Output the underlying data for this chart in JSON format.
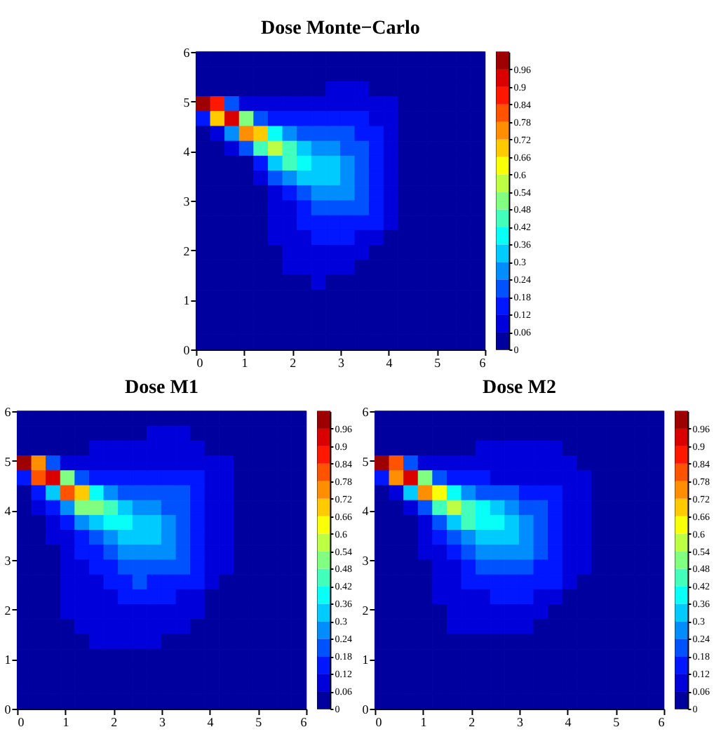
{
  "chart_data": [
    {
      "type": "heatmap",
      "title": "Dose Monte−Carlo",
      "x": [
        0.15,
        0.45,
        0.75,
        1.05,
        1.35,
        1.65,
        1.95,
        2.25,
        2.55,
        2.85,
        3.15,
        3.45,
        3.75,
        4.05,
        4.35,
        4.65,
        4.95,
        5.25,
        5.55,
        5.85
      ],
      "y": [
        5.85,
        5.55,
        5.25,
        4.95,
        4.65,
        4.35,
        4.05,
        3.75,
        3.45,
        3.15,
        2.85,
        2.55,
        2.25,
        1.95,
        1.65,
        1.35,
        1.05,
        0.75,
        0.45,
        0.15
      ],
      "xlim": [
        0,
        6
      ],
      "ylim": [
        0,
        6
      ],
      "xticks": [
        0,
        1,
        2,
        3,
        4,
        5,
        6
      ],
      "yticks": [
        0,
        1,
        2,
        3,
        4,
        5,
        6
      ],
      "clim": [
        0,
        1.02
      ],
      "cticks": [
        0,
        0.06,
        0.12,
        0.18,
        0.24,
        0.3,
        0.36,
        0.42,
        0.48,
        0.54,
        0.6,
        0.66,
        0.72,
        0.78,
        0.84,
        0.9,
        0.96
      ],
      "cells": [
        [
          0.03,
          0.03,
          0.03,
          0.03,
          0.03,
          0.03,
          0.03,
          0.03,
          0.03,
          0.03,
          0.03,
          0.03,
          0.03,
          0.03,
          0.03,
          0.03,
          0.03,
          0.03,
          0.03,
          0.03
        ],
        [
          0.03,
          0.03,
          0.03,
          0.03,
          0.03,
          0.03,
          0.03,
          0.03,
          0.03,
          0.03,
          0.03,
          0.03,
          0.03,
          0.03,
          0.03,
          0.03,
          0.03,
          0.03,
          0.03,
          0.03
        ],
        [
          0.03,
          0.03,
          0.03,
          0.03,
          0.03,
          0.03,
          0.03,
          0.03,
          0.03,
          0.09,
          0.09,
          0.09,
          0.03,
          0.03,
          0.03,
          0.03,
          0.03,
          0.03,
          0.03,
          0.03
        ],
        [
          0.99,
          0.87,
          0.21,
          0.09,
          0.09,
          0.09,
          0.09,
          0.09,
          0.09,
          0.09,
          0.09,
          0.09,
          0.09,
          0.09,
          0.03,
          0.03,
          0.03,
          0.03,
          0.03,
          0.03
        ],
        [
          0.15,
          0.69,
          0.93,
          0.51,
          0.21,
          0.15,
          0.15,
          0.15,
          0.15,
          0.15,
          0.15,
          0.15,
          0.09,
          0.09,
          0.03,
          0.03,
          0.03,
          0.03,
          0.03,
          0.03
        ],
        [
          0.03,
          0.09,
          0.27,
          0.75,
          0.69,
          0.39,
          0.27,
          0.21,
          0.21,
          0.21,
          0.21,
          0.15,
          0.15,
          0.09,
          0.03,
          0.03,
          0.03,
          0.03,
          0.03,
          0.03
        ],
        [
          0.03,
          0.03,
          0.09,
          0.21,
          0.45,
          0.57,
          0.45,
          0.33,
          0.27,
          0.27,
          0.21,
          0.21,
          0.15,
          0.09,
          0.03,
          0.03,
          0.03,
          0.03,
          0.03,
          0.03
        ],
        [
          0.03,
          0.03,
          0.03,
          0.03,
          0.15,
          0.33,
          0.45,
          0.39,
          0.33,
          0.33,
          0.27,
          0.21,
          0.15,
          0.09,
          0.03,
          0.03,
          0.03,
          0.03,
          0.03,
          0.03
        ],
        [
          0.03,
          0.03,
          0.03,
          0.03,
          0.09,
          0.21,
          0.27,
          0.33,
          0.33,
          0.33,
          0.27,
          0.21,
          0.15,
          0.09,
          0.03,
          0.03,
          0.03,
          0.03,
          0.03,
          0.03
        ],
        [
          0.03,
          0.03,
          0.03,
          0.03,
          0.03,
          0.09,
          0.15,
          0.21,
          0.27,
          0.27,
          0.27,
          0.21,
          0.15,
          0.09,
          0.03,
          0.03,
          0.03,
          0.03,
          0.03,
          0.03
        ],
        [
          0.03,
          0.03,
          0.03,
          0.03,
          0.03,
          0.09,
          0.09,
          0.15,
          0.21,
          0.21,
          0.21,
          0.21,
          0.15,
          0.09,
          0.03,
          0.03,
          0.03,
          0.03,
          0.03,
          0.03
        ],
        [
          0.03,
          0.03,
          0.03,
          0.03,
          0.03,
          0.09,
          0.09,
          0.15,
          0.15,
          0.15,
          0.15,
          0.15,
          0.15,
          0.09,
          0.03,
          0.03,
          0.03,
          0.03,
          0.03,
          0.03
        ],
        [
          0.03,
          0.03,
          0.03,
          0.03,
          0.03,
          0.09,
          0.09,
          0.09,
          0.15,
          0.15,
          0.15,
          0.09,
          0.09,
          0.03,
          0.03,
          0.03,
          0.03,
          0.03,
          0.03,
          0.03
        ],
        [
          0.03,
          0.03,
          0.03,
          0.03,
          0.03,
          0.03,
          0.09,
          0.09,
          0.09,
          0.09,
          0.09,
          0.09,
          0.03,
          0.03,
          0.03,
          0.03,
          0.03,
          0.03,
          0.03,
          0.03
        ],
        [
          0.03,
          0.03,
          0.03,
          0.03,
          0.03,
          0.03,
          0.09,
          0.09,
          0.09,
          0.09,
          0.09,
          0.03,
          0.03,
          0.03,
          0.03,
          0.03,
          0.03,
          0.03,
          0.03,
          0.03
        ],
        [
          0.03,
          0.03,
          0.03,
          0.03,
          0.03,
          0.03,
          0.03,
          0.03,
          0.09,
          0.03,
          0.03,
          0.03,
          0.03,
          0.03,
          0.03,
          0.03,
          0.03,
          0.03,
          0.03,
          0.03
        ],
        [
          0.03,
          0.03,
          0.03,
          0.03,
          0.03,
          0.03,
          0.03,
          0.03,
          0.03,
          0.03,
          0.03,
          0.03,
          0.03,
          0.03,
          0.03,
          0.03,
          0.03,
          0.03,
          0.03,
          0.03
        ],
        [
          0.03,
          0.03,
          0.03,
          0.03,
          0.03,
          0.03,
          0.03,
          0.03,
          0.03,
          0.03,
          0.03,
          0.03,
          0.03,
          0.03,
          0.03,
          0.03,
          0.03,
          0.03,
          0.03,
          0.03
        ],
        [
          0.03,
          0.03,
          0.03,
          0.03,
          0.03,
          0.03,
          0.03,
          0.03,
          0.03,
          0.03,
          0.03,
          0.03,
          0.03,
          0.03,
          0.03,
          0.03,
          0.03,
          0.03,
          0.03,
          0.03
        ],
        [
          0.03,
          0.03,
          0.03,
          0.03,
          0.03,
          0.03,
          0.03,
          0.03,
          0.03,
          0.03,
          0.03,
          0.03,
          0.03,
          0.03,
          0.03,
          0.03,
          0.03,
          0.03,
          0.03,
          0.03
        ]
      ]
    },
    {
      "type": "heatmap",
      "title": "Dose M1",
      "x": [
        0.15,
        0.45,
        0.75,
        1.05,
        1.35,
        1.65,
        1.95,
        2.25,
        2.55,
        2.85,
        3.15,
        3.45,
        3.75,
        4.05,
        4.35,
        4.65,
        4.95,
        5.25,
        5.55,
        5.85
      ],
      "y": [
        5.85,
        5.55,
        5.25,
        4.95,
        4.65,
        4.35,
        4.05,
        3.75,
        3.45,
        3.15,
        2.85,
        2.55,
        2.25,
        1.95,
        1.65,
        1.35,
        1.05,
        0.75,
        0.45,
        0.15
      ],
      "xlim": [
        0,
        6
      ],
      "ylim": [
        0,
        6
      ],
      "xticks": [
        0,
        1,
        2,
        3,
        4,
        5,
        6
      ],
      "yticks": [
        0,
        1,
        2,
        3,
        4,
        5,
        6
      ],
      "clim": [
        0,
        1.02
      ],
      "cticks": [
        0,
        0.06,
        0.12,
        0.18,
        0.24,
        0.3,
        0.36,
        0.42,
        0.48,
        0.54,
        0.6,
        0.66,
        0.72,
        0.78,
        0.84,
        0.9,
        0.96
      ],
      "cells": [
        [
          0.03,
          0.03,
          0.03,
          0.03,
          0.03,
          0.03,
          0.03,
          0.03,
          0.03,
          0.03,
          0.03,
          0.03,
          0.03,
          0.03,
          0.03,
          0.03,
          0.03,
          0.03,
          0.03,
          0.03
        ],
        [
          0.03,
          0.03,
          0.03,
          0.03,
          0.03,
          0.03,
          0.03,
          0.03,
          0.03,
          0.09,
          0.09,
          0.09,
          0.03,
          0.03,
          0.03,
          0.03,
          0.03,
          0.03,
          0.03,
          0.03
        ],
        [
          0.03,
          0.03,
          0.03,
          0.03,
          0.03,
          0.09,
          0.09,
          0.09,
          0.09,
          0.09,
          0.09,
          0.09,
          0.09,
          0.03,
          0.03,
          0.03,
          0.03,
          0.03,
          0.03,
          0.03
        ],
        [
          0.99,
          0.75,
          0.21,
          0.09,
          0.09,
          0.09,
          0.09,
          0.09,
          0.09,
          0.09,
          0.09,
          0.09,
          0.09,
          0.09,
          0.09,
          0.03,
          0.03,
          0.03,
          0.03,
          0.03
        ],
        [
          0.15,
          0.81,
          0.93,
          0.51,
          0.21,
          0.15,
          0.15,
          0.15,
          0.15,
          0.15,
          0.15,
          0.15,
          0.15,
          0.09,
          0.09,
          0.03,
          0.03,
          0.03,
          0.03,
          0.03
        ],
        [
          0.03,
          0.15,
          0.33,
          0.81,
          0.69,
          0.39,
          0.27,
          0.21,
          0.21,
          0.21,
          0.21,
          0.21,
          0.15,
          0.09,
          0.09,
          0.03,
          0.03,
          0.03,
          0.03,
          0.03
        ],
        [
          0.03,
          0.09,
          0.15,
          0.27,
          0.51,
          0.51,
          0.45,
          0.33,
          0.27,
          0.27,
          0.21,
          0.21,
          0.15,
          0.09,
          0.09,
          0.03,
          0.03,
          0.03,
          0.03,
          0.03
        ],
        [
          0.03,
          0.03,
          0.09,
          0.15,
          0.27,
          0.33,
          0.39,
          0.39,
          0.33,
          0.33,
          0.27,
          0.21,
          0.15,
          0.09,
          0.09,
          0.03,
          0.03,
          0.03,
          0.03,
          0.03
        ],
        [
          0.03,
          0.03,
          0.09,
          0.09,
          0.15,
          0.21,
          0.27,
          0.33,
          0.33,
          0.33,
          0.27,
          0.21,
          0.15,
          0.09,
          0.09,
          0.03,
          0.03,
          0.03,
          0.03,
          0.03
        ],
        [
          0.03,
          0.03,
          0.03,
          0.09,
          0.15,
          0.15,
          0.21,
          0.27,
          0.27,
          0.27,
          0.27,
          0.21,
          0.15,
          0.09,
          0.09,
          0.03,
          0.03,
          0.03,
          0.03,
          0.03
        ],
        [
          0.03,
          0.03,
          0.03,
          0.09,
          0.09,
          0.15,
          0.15,
          0.21,
          0.21,
          0.21,
          0.21,
          0.21,
          0.15,
          0.09,
          0.09,
          0.03,
          0.03,
          0.03,
          0.03,
          0.03
        ],
        [
          0.03,
          0.03,
          0.03,
          0.09,
          0.09,
          0.09,
          0.15,
          0.15,
          0.21,
          0.15,
          0.15,
          0.15,
          0.15,
          0.09,
          0.03,
          0.03,
          0.03,
          0.03,
          0.03,
          0.03
        ],
        [
          0.03,
          0.03,
          0.03,
          0.09,
          0.09,
          0.09,
          0.09,
          0.15,
          0.15,
          0.15,
          0.15,
          0.09,
          0.09,
          0.03,
          0.03,
          0.03,
          0.03,
          0.03,
          0.03,
          0.03
        ],
        [
          0.03,
          0.03,
          0.03,
          0.09,
          0.09,
          0.09,
          0.09,
          0.09,
          0.09,
          0.09,
          0.09,
          0.09,
          0.09,
          0.03,
          0.03,
          0.03,
          0.03,
          0.03,
          0.03,
          0.03
        ],
        [
          0.03,
          0.03,
          0.03,
          0.03,
          0.09,
          0.09,
          0.09,
          0.09,
          0.09,
          0.09,
          0.09,
          0.09,
          0.03,
          0.03,
          0.03,
          0.03,
          0.03,
          0.03,
          0.03,
          0.03
        ],
        [
          0.03,
          0.03,
          0.03,
          0.03,
          0.03,
          0.09,
          0.09,
          0.09,
          0.09,
          0.09,
          0.03,
          0.03,
          0.03,
          0.03,
          0.03,
          0.03,
          0.03,
          0.03,
          0.03,
          0.03
        ],
        [
          0.03,
          0.03,
          0.03,
          0.03,
          0.03,
          0.03,
          0.03,
          0.03,
          0.03,
          0.03,
          0.03,
          0.03,
          0.03,
          0.03,
          0.03,
          0.03,
          0.03,
          0.03,
          0.03,
          0.03
        ],
        [
          0.03,
          0.03,
          0.03,
          0.03,
          0.03,
          0.03,
          0.03,
          0.03,
          0.03,
          0.03,
          0.03,
          0.03,
          0.03,
          0.03,
          0.03,
          0.03,
          0.03,
          0.03,
          0.03,
          0.03
        ],
        [
          0.03,
          0.03,
          0.03,
          0.03,
          0.03,
          0.03,
          0.03,
          0.03,
          0.03,
          0.03,
          0.03,
          0.03,
          0.03,
          0.03,
          0.03,
          0.03,
          0.03,
          0.03,
          0.03,
          0.03
        ],
        [
          0.03,
          0.03,
          0.03,
          0.03,
          0.03,
          0.03,
          0.03,
          0.03,
          0.03,
          0.03,
          0.03,
          0.03,
          0.03,
          0.03,
          0.03,
          0.03,
          0.03,
          0.03,
          0.03,
          0.03
        ]
      ]
    },
    {
      "type": "heatmap",
      "title": "Dose M2",
      "x": [
        0.15,
        0.45,
        0.75,
        1.05,
        1.35,
        1.65,
        1.95,
        2.25,
        2.55,
        2.85,
        3.15,
        3.45,
        3.75,
        4.05,
        4.35,
        4.65,
        4.95,
        5.25,
        5.55,
        5.85
      ],
      "y": [
        5.85,
        5.55,
        5.25,
        4.95,
        4.65,
        4.35,
        4.05,
        3.75,
        3.45,
        3.15,
        2.85,
        2.55,
        2.25,
        1.95,
        1.65,
        1.35,
        1.05,
        0.75,
        0.45,
        0.15
      ],
      "xlim": [
        0,
        6
      ],
      "ylim": [
        0,
        6
      ],
      "xticks": [
        0,
        1,
        2,
        3,
        4,
        5,
        6
      ],
      "yticks": [
        0,
        1,
        2,
        3,
        4,
        5,
        6
      ],
      "clim": [
        0,
        1.02
      ],
      "cticks": [
        0,
        0.06,
        0.12,
        0.18,
        0.24,
        0.3,
        0.36,
        0.42,
        0.48,
        0.54,
        0.6,
        0.66,
        0.72,
        0.78,
        0.84,
        0.9,
        0.96
      ],
      "cells": [
        [
          0.03,
          0.03,
          0.03,
          0.03,
          0.03,
          0.03,
          0.03,
          0.03,
          0.03,
          0.03,
          0.03,
          0.03,
          0.03,
          0.03,
          0.03,
          0.03,
          0.03,
          0.03,
          0.03,
          0.03
        ],
        [
          0.03,
          0.03,
          0.03,
          0.03,
          0.03,
          0.03,
          0.03,
          0.03,
          0.03,
          0.03,
          0.03,
          0.03,
          0.03,
          0.03,
          0.03,
          0.03,
          0.03,
          0.03,
          0.03,
          0.03
        ],
        [
          0.03,
          0.03,
          0.03,
          0.03,
          0.03,
          0.03,
          0.03,
          0.09,
          0.09,
          0.09,
          0.09,
          0.09,
          0.09,
          0.03,
          0.03,
          0.03,
          0.03,
          0.03,
          0.03,
          0.03
        ],
        [
          0.99,
          0.81,
          0.21,
          0.09,
          0.09,
          0.09,
          0.09,
          0.09,
          0.09,
          0.09,
          0.09,
          0.09,
          0.09,
          0.09,
          0.03,
          0.03,
          0.03,
          0.03,
          0.03,
          0.03
        ],
        [
          0.15,
          0.75,
          0.93,
          0.51,
          0.21,
          0.15,
          0.15,
          0.15,
          0.09,
          0.09,
          0.09,
          0.09,
          0.09,
          0.09,
          0.09,
          0.03,
          0.03,
          0.03,
          0.03,
          0.03
        ],
        [
          0.03,
          0.09,
          0.33,
          0.75,
          0.63,
          0.39,
          0.27,
          0.21,
          0.21,
          0.21,
          0.15,
          0.15,
          0.15,
          0.09,
          0.09,
          0.03,
          0.03,
          0.03,
          0.03,
          0.03
        ],
        [
          0.03,
          0.03,
          0.09,
          0.21,
          0.45,
          0.57,
          0.45,
          0.39,
          0.33,
          0.27,
          0.21,
          0.21,
          0.15,
          0.09,
          0.09,
          0.03,
          0.03,
          0.03,
          0.03,
          0.03
        ],
        [
          0.03,
          0.03,
          0.03,
          0.09,
          0.21,
          0.33,
          0.45,
          0.39,
          0.39,
          0.33,
          0.27,
          0.21,
          0.15,
          0.09,
          0.09,
          0.03,
          0.03,
          0.03,
          0.03,
          0.03
        ],
        [
          0.03,
          0.03,
          0.03,
          0.09,
          0.15,
          0.21,
          0.27,
          0.33,
          0.33,
          0.33,
          0.27,
          0.21,
          0.15,
          0.09,
          0.09,
          0.03,
          0.03,
          0.03,
          0.03,
          0.03
        ],
        [
          0.03,
          0.03,
          0.03,
          0.09,
          0.09,
          0.15,
          0.21,
          0.27,
          0.27,
          0.27,
          0.27,
          0.21,
          0.15,
          0.09,
          0.09,
          0.03,
          0.03,
          0.03,
          0.03,
          0.03
        ],
        [
          0.03,
          0.03,
          0.03,
          0.03,
          0.09,
          0.09,
          0.15,
          0.21,
          0.21,
          0.21,
          0.21,
          0.15,
          0.15,
          0.09,
          0.09,
          0.03,
          0.03,
          0.03,
          0.03,
          0.03
        ],
        [
          0.03,
          0.03,
          0.03,
          0.03,
          0.09,
          0.09,
          0.15,
          0.15,
          0.15,
          0.15,
          0.15,
          0.15,
          0.15,
          0.09,
          0.03,
          0.03,
          0.03,
          0.03,
          0.03,
          0.03
        ],
        [
          0.03,
          0.03,
          0.03,
          0.03,
          0.09,
          0.09,
          0.09,
          0.09,
          0.15,
          0.15,
          0.15,
          0.09,
          0.09,
          0.03,
          0.03,
          0.03,
          0.03,
          0.03,
          0.03,
          0.03
        ],
        [
          0.03,
          0.03,
          0.03,
          0.03,
          0.03,
          0.09,
          0.09,
          0.09,
          0.09,
          0.09,
          0.09,
          0.09,
          0.03,
          0.03,
          0.03,
          0.03,
          0.03,
          0.03,
          0.03,
          0.03
        ],
        [
          0.03,
          0.03,
          0.03,
          0.03,
          0.03,
          0.09,
          0.09,
          0.09,
          0.09,
          0.09,
          0.09,
          0.03,
          0.03,
          0.03,
          0.03,
          0.03,
          0.03,
          0.03,
          0.03,
          0.03
        ],
        [
          0.03,
          0.03,
          0.03,
          0.03,
          0.03,
          0.03,
          0.03,
          0.03,
          0.03,
          0.03,
          0.03,
          0.03,
          0.03,
          0.03,
          0.03,
          0.03,
          0.03,
          0.03,
          0.03,
          0.03
        ],
        [
          0.03,
          0.03,
          0.03,
          0.03,
          0.03,
          0.03,
          0.03,
          0.03,
          0.03,
          0.03,
          0.03,
          0.03,
          0.03,
          0.03,
          0.03,
          0.03,
          0.03,
          0.03,
          0.03,
          0.03
        ],
        [
          0.03,
          0.03,
          0.03,
          0.03,
          0.03,
          0.03,
          0.03,
          0.03,
          0.03,
          0.03,
          0.03,
          0.03,
          0.03,
          0.03,
          0.03,
          0.03,
          0.03,
          0.03,
          0.03,
          0.03
        ],
        [
          0.03,
          0.03,
          0.03,
          0.03,
          0.03,
          0.03,
          0.03,
          0.03,
          0.03,
          0.03,
          0.03,
          0.03,
          0.03,
          0.03,
          0.03,
          0.03,
          0.03,
          0.03,
          0.03,
          0.03
        ],
        [
          0.03,
          0.03,
          0.03,
          0.03,
          0.03,
          0.03,
          0.03,
          0.03,
          0.03,
          0.03,
          0.03,
          0.03,
          0.03,
          0.03,
          0.03,
          0.03,
          0.03,
          0.03,
          0.03,
          0.03
        ]
      ]
    }
  ]
}
